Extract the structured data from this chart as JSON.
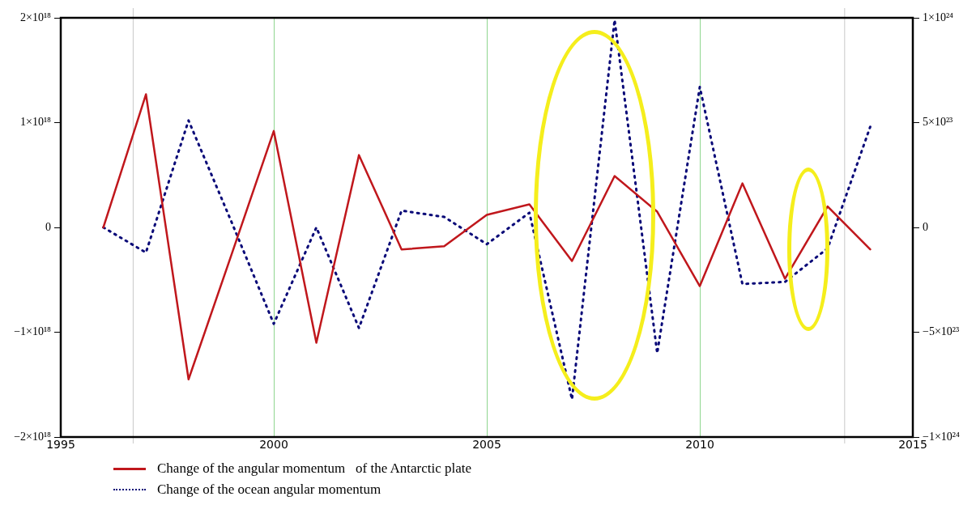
{
  "chart_data": {
    "type": "line",
    "x": [
      1996,
      1997,
      1998,
      1999,
      2000,
      2001,
      2002,
      2003,
      2004,
      2005,
      2006,
      2007,
      2008,
      2009,
      2010,
      2011,
      2012,
      2013,
      2014
    ],
    "series": [
      {
        "name": "Change of the angular momentum   of the Antarctic plate",
        "color": "#c0171c",
        "line_style": "solid",
        "values": [
          0,
          1.27e+18,
          -1.45e+18,
          -2.7e+17,
          9.2e+17,
          -1.1e+18,
          6.9e+17,
          -2.1e+17,
          -1.8e+17,
          1.2e+17,
          2.2e+17,
          -3.2e+17,
          4.9e+17,
          1.5e+17,
          -5.6e+17,
          4.2e+17,
          -4.9e+17,
          2e+17,
          -2.1e+17
        ]
      },
      {
        "name": "Change of the ocean angular momentum",
        "color": "#0a0a78",
        "line_style": "dotted",
        "axis": "y2",
        "values": [
          0,
          -1.2e+23,
          5.1e+23,
          3e+22,
          -4.6e+23,
          0,
          -4.8e+23,
          8e+22,
          5e+22,
          -8e+22,
          7e+22,
          -8.2e+23,
          9.9e+23,
          -6e+23,
          6.7e+23,
          -2.7e+23,
          -2.6e+23,
          -1e+23,
          4.8e+23
        ]
      }
    ],
    "xlim": [
      1995,
      2015
    ],
    "xticks": [
      1995,
      2000,
      2005,
      2010,
      2015
    ],
    "ylim": [
      -2e+18,
      2e+18
    ],
    "yticks": [
      {
        "value": -2e+18,
        "label": "−2×10¹⁸"
      },
      {
        "value": -1e+18,
        "label": "−1×10¹⁸"
      },
      0,
      {
        "value": 1e+18,
        "label": "1×10¹⁸"
      },
      {
        "value": 2e+18,
        "label": "2×10¹⁸"
      }
    ],
    "y2lim": [
      -1e+24,
      1e+24
    ],
    "y2ticks": [
      {
        "value": -1e+24,
        "label": "−1×10²⁴"
      },
      {
        "value": -5e+23,
        "label": "−5×10²³"
      },
      0,
      {
        "value": 5e+23,
        "label": "5×10²³"
      },
      {
        "value": 1e+24,
        "label": "1×10²⁴"
      }
    ],
    "ref_lines": [
      {
        "axis": "x",
        "value": 1996.7,
        "color": "#c8c8c8"
      },
      {
        "axis": "x",
        "value": 2013.4,
        "color": "#c8c8c8"
      }
    ],
    "grid": "x",
    "legend": "bottom",
    "marker": "none"
  }
}
